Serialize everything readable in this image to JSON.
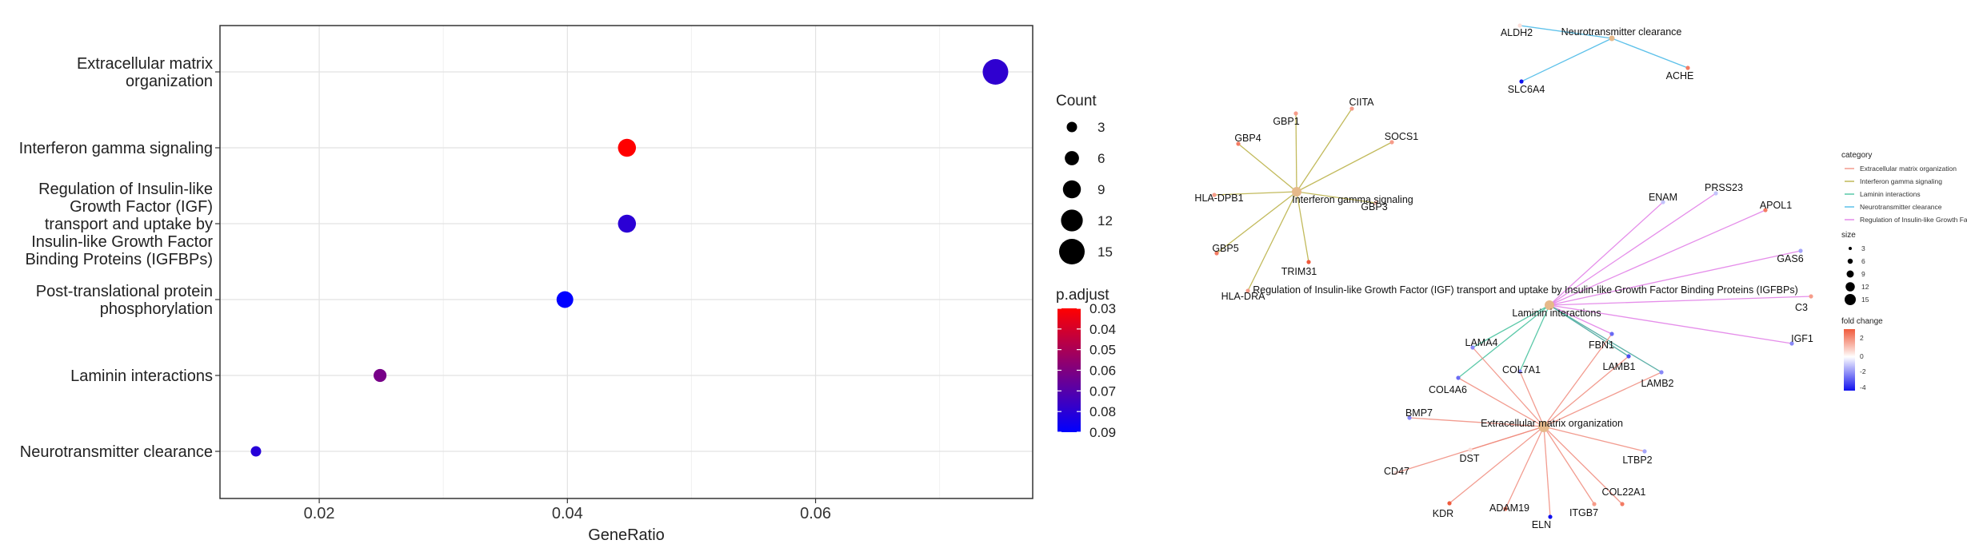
{
  "chart_data": [
    {
      "type": "scatter",
      "title": "",
      "xlabel": "GeneRatio",
      "ylabel": "",
      "xlim": [
        0.012,
        0.0775
      ],
      "x_ticks": [
        0.02,
        0.04,
        0.06
      ],
      "x_tick_labels": [
        "0.02",
        "0.04",
        "0.06"
      ],
      "grid": true,
      "categories": [
        "Extracellular matrix\norganization",
        "Interferon gamma signaling",
        "Regulation of Insulin-like\nGrowth Factor (IGF)\ntransport and uptake by\nInsulin-like Growth Factor\nBinding Proteins (IGFBPs)",
        "Post-translational protein\nphosphorylation",
        "Laminin interactions",
        "Neurotransmitter clearance"
      ],
      "points": [
        {
          "x": 0.0745,
          "count": 15,
          "p_adjust": 0.079
        },
        {
          "x": 0.0448,
          "count": 9,
          "p_adjust": 0.03
        },
        {
          "x": 0.0448,
          "count": 9,
          "p_adjust": 0.08
        },
        {
          "x": 0.0398,
          "count": 8,
          "p_adjust": 0.09
        },
        {
          "x": 0.0249,
          "count": 5,
          "p_adjust": 0.062
        },
        {
          "x": 0.0149,
          "count": 3,
          "p_adjust": 0.081
        }
      ],
      "size_legend": {
        "title": "Count",
        "values": [
          3,
          6,
          9,
          12,
          15
        ],
        "labels": [
          "3",
          "6",
          "9",
          "12",
          "15"
        ]
      },
      "color_legend": {
        "title": "p.adjust",
        "range": [
          0.03,
          0.09
        ],
        "ticks": [
          "0.03",
          "0.04",
          "0.05",
          "0.06",
          "0.07",
          "0.08",
          "0.09"
        ],
        "low_color": "#ff0000",
        "high_color": "#0000ff"
      }
    },
    {
      "type": "network",
      "title": "",
      "categories": [
        {
          "id": "ecm",
          "label": "Extracellular matrix organization",
          "legend_label": "Extracellular matrix organization",
          "color": "#f08b7d"
        },
        {
          "id": "ifn",
          "label": "Interferon gamma signaling",
          "legend_label": "Interferon gamma signaling",
          "color": "#b7ae3f"
        },
        {
          "id": "lam",
          "label": "Laminin interactions",
          "legend_label": "Laminin interactions",
          "color": "#3fbf9a"
        },
        {
          "id": "neu",
          "label": "Neurotransmitter clearance",
          "legend_label": "Neurotransmitter clearance",
          "color": "#41b6e6"
        },
        {
          "id": "igf",
          "label": "Regulation of Insulin-like Growth Factor (IGF) transport and uptake by Insulin-like Growth Factor Binding Proteins (IGFBPs)",
          "legend_label": "Regulation of Insulin-like Growth Fac",
          "color": "#e07ae6"
        }
      ],
      "genes": [
        {
          "name": "ALDH2",
          "cat": "neu",
          "fc": 0.5
        },
        {
          "name": "SLC6A4",
          "cat": "neu",
          "fc": -4
        },
        {
          "name": "ACHE",
          "cat": "neu",
          "fc": 2
        },
        {
          "name": "CIITA",
          "cat": "ifn",
          "fc": 1.5
        },
        {
          "name": "GBP1",
          "cat": "ifn",
          "fc": 1.5
        },
        {
          "name": "GBP4",
          "cat": "ifn",
          "fc": 2
        },
        {
          "name": "SOCS1",
          "cat": "ifn",
          "fc": 1.5
        },
        {
          "name": "HLA-DPB1",
          "cat": "ifn",
          "fc": 1.5
        },
        {
          "name": "GBP3",
          "cat": "ifn",
          "fc": 1
        },
        {
          "name": "GBP5",
          "cat": "ifn",
          "fc": 2
        },
        {
          "name": "TRIM31",
          "cat": "ifn",
          "fc": 2.5
        },
        {
          "name": "HLA-DRA",
          "cat": "ifn",
          "fc": 1.5
        },
        {
          "name": "ENAM",
          "cat": "igf",
          "fc": -1
        },
        {
          "name": "PRSS23",
          "cat": "igf",
          "fc": -1
        },
        {
          "name": "APOL1",
          "cat": "igf",
          "fc": 2
        },
        {
          "name": "GAS6",
          "cat": "igf",
          "fc": -1.5
        },
        {
          "name": "C3",
          "cat": "igf",
          "fc": 1.5
        },
        {
          "name": "IGF1",
          "cat": "igf",
          "fc": -2
        },
        {
          "name": "FBN1",
          "cat": "ecm",
          "fc": -2.5
        },
        {
          "name": "LAMB1",
          "cat": "ecm",
          "fc": -3
        },
        {
          "name": "LAMB2",
          "cat": "ecm",
          "fc": -2
        },
        {
          "name": "LAMA4",
          "cat": "lam",
          "fc": -2
        },
        {
          "name": "COL7A1",
          "cat": "ecm",
          "fc": -2
        },
        {
          "name": "COL4A6",
          "cat": "ecm",
          "fc": -2.5
        },
        {
          "name": "BMP7",
          "cat": "ecm",
          "fc": -2
        },
        {
          "name": "DST",
          "cat": "ecm",
          "fc": 0.5
        },
        {
          "name": "CD47",
          "cat": "ecm",
          "fc": 0.5
        },
        {
          "name": "KDR",
          "cat": "ecm",
          "fc": 2.5
        },
        {
          "name": "ADAM19",
          "cat": "ecm",
          "fc": 2
        },
        {
          "name": "ELN",
          "cat": "ecm",
          "fc": -4
        },
        {
          "name": "ITGB7",
          "cat": "ecm",
          "fc": 1.5
        },
        {
          "name": "COL22A1",
          "cat": "ecm",
          "fc": 2
        },
        {
          "name": "LTBP2",
          "cat": "ecm",
          "fc": -1.5
        }
      ],
      "edges": [
        [
          "neu",
          "ALDH2"
        ],
        [
          "neu",
          "SLC6A4"
        ],
        [
          "neu",
          "ACHE"
        ],
        [
          "ifn",
          "CIITA"
        ],
        [
          "ifn",
          "GBP1"
        ],
        [
          "ifn",
          "GBP4"
        ],
        [
          "ifn",
          "SOCS1"
        ],
        [
          "ifn",
          "HLA-DPB1"
        ],
        [
          "ifn",
          "GBP3"
        ],
        [
          "ifn",
          "GBP5"
        ],
        [
          "ifn",
          "TRIM31"
        ],
        [
          "ifn",
          "HLA-DRA"
        ],
        [
          "igf",
          "ENAM"
        ],
        [
          "igf",
          "PRSS23"
        ],
        [
          "igf",
          "APOL1"
        ],
        [
          "igf",
          "GAS6"
        ],
        [
          "igf",
          "C3"
        ],
        [
          "igf",
          "IGF1"
        ],
        [
          "igf",
          "FBN1"
        ],
        [
          "igf",
          "LAMB1"
        ],
        [
          "igf",
          "LAMB2"
        ],
        [
          "lam",
          "LAMA4"
        ],
        [
          "lam",
          "COL4A6"
        ],
        [
          "lam",
          "COL7A1"
        ],
        [
          "lam",
          "LAMB1"
        ],
        [
          "lam",
          "LAMB2"
        ],
        [
          "ecm",
          "FBN1"
        ],
        [
          "ecm",
          "LAMB1"
        ],
        [
          "ecm",
          "LAMB2"
        ],
        [
          "ecm",
          "LAMA4"
        ],
        [
          "ecm",
          "COL7A1"
        ],
        [
          "ecm",
          "COL4A6"
        ],
        [
          "ecm",
          "BMP7"
        ],
        [
          "ecm",
          "DST"
        ],
        [
          "ecm",
          "CD47"
        ],
        [
          "ecm",
          "KDR"
        ],
        [
          "ecm",
          "ADAM19"
        ],
        [
          "ecm",
          "ELN"
        ],
        [
          "ecm",
          "ITGB7"
        ],
        [
          "ecm",
          "COL22A1"
        ],
        [
          "ecm",
          "LTBP2"
        ]
      ],
      "legend": {
        "category_title": "category",
        "size_title": "size",
        "size_values": [
          "3",
          "6",
          "9",
          "12",
          "15"
        ],
        "fc_title": "fold change",
        "fc_ticks": [
          "2",
          "0",
          "-2",
          "-4"
        ],
        "fc_range": [
          -4,
          2.5
        ],
        "fc_high_color": "#f05a3c",
        "fc_mid_color": "#ffffff",
        "fc_low_color": "#1010ee"
      }
    }
  ]
}
